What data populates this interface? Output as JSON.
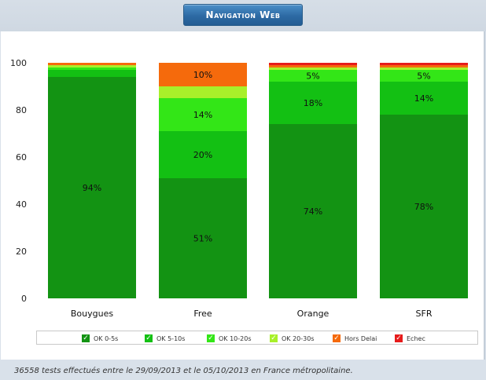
{
  "header": {
    "title": "Navigation Web"
  },
  "chart_data": {
    "type": "bar",
    "stacked": true,
    "categories": [
      "Bouygues",
      "Free",
      "Orange",
      "SFR"
    ],
    "ylim": [
      0,
      100
    ],
    "yticks": [
      "0",
      "20",
      "40",
      "60",
      "80",
      "100"
    ],
    "series": [
      {
        "name": "OK 0-5s",
        "color": "#139313",
        "values": [
          94,
          51,
          74,
          78
        ],
        "labels": [
          "94%",
          "51%",
          "74%",
          "78%"
        ]
      },
      {
        "name": "OK 5-10s",
        "color": "#13c013",
        "values": [
          3,
          20,
          18,
          14
        ],
        "labels": [
          "",
          "20%",
          "18%",
          "14%"
        ]
      },
      {
        "name": "OK 10-20s",
        "color": "#33e617",
        "values": [
          1,
          14,
          5,
          5
        ],
        "labels": [
          "",
          "14%",
          "5%",
          "5%"
        ]
      },
      {
        "name": "OK 20-30s",
        "color": "#a8f02a",
        "values": [
          1,
          5,
          1,
          1
        ],
        "labels": [
          "",
          "",
          "",
          ""
        ]
      },
      {
        "name": "Hors Delai",
        "color": "#f56a0c",
        "values": [
          1,
          10,
          1,
          1
        ],
        "labels": [
          "",
          "10%",
          "",
          ""
        ]
      },
      {
        "name": "Echec",
        "color": "#e61b1b",
        "values": [
          0,
          0,
          1,
          1
        ],
        "labels": [
          "",
          "",
          "",
          ""
        ]
      }
    ],
    "grid": false,
    "legend_position": "bottom"
  },
  "legend": {
    "check_glyph": "✓",
    "items": [
      "OK 0-5s",
      "OK 5-10s",
      "OK 10-20s",
      "OK 20-30s",
      "Hors Delai",
      "Echec"
    ]
  },
  "footer": {
    "text": "36558 tests effectués entre le 29/09/2013 et le 05/10/2013 en France métropolitaine."
  }
}
